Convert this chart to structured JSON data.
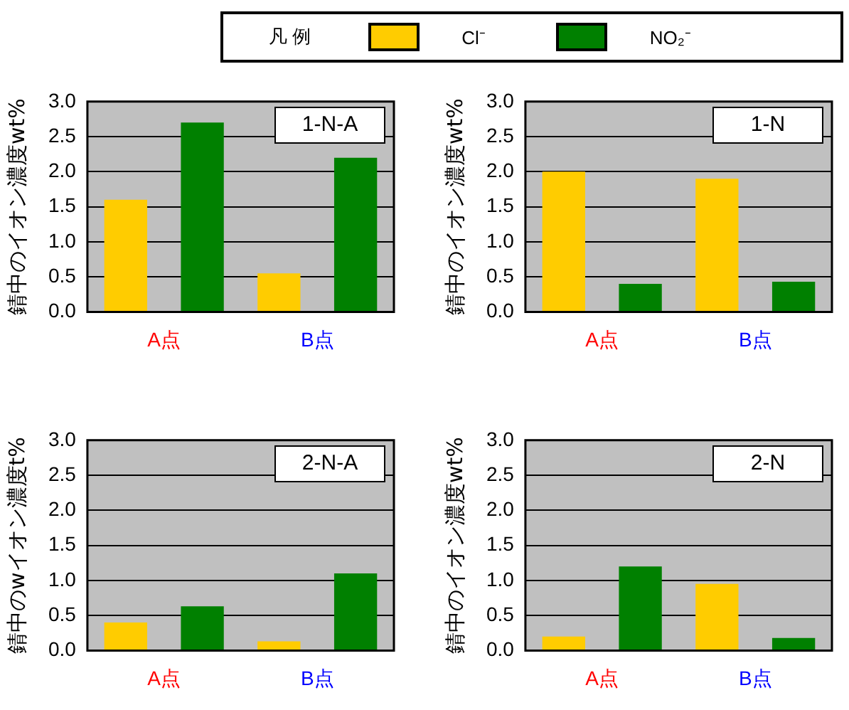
{
  "chart_data": [
    {
      "type": "bar",
      "ylabel": "錆中のイオン濃度wt%",
      "legend_title": "凡 例",
      "legend": "top",
      "categories": [
        "A点",
        "B点"
      ],
      "annotations": [
        "1-N-A"
      ],
      "ylim": [
        0,
        3
      ],
      "yticks": [
        {
          "value": 0,
          "label": "0.0"
        },
        0.5,
        {
          "value": 1,
          "label": "1.0"
        },
        1.5,
        {
          "value": 2,
          "label": "2.0"
        },
        2.5,
        {
          "value": 3,
          "label": "3.0"
        }
      ],
      "grid": "y",
      "series": [
        {
          "name": "Cl⁻",
          "color": "#ffcc00",
          "values": [
            1.6,
            0.55
          ]
        },
        {
          "name": "NO₂⁻",
          "color": "#008000",
          "values": [
            2.7,
            2.2
          ]
        }
      ]
    },
    {
      "type": "bar",
      "ylabel": "錆中のイオン濃度wt%",
      "categories": [
        "A点",
        "B点"
      ],
      "annotations": [
        "1-N"
      ],
      "ylim": [
        0,
        3
      ],
      "yticks": [
        {
          "value": 0,
          "label": "0.0"
        },
        0.5,
        {
          "value": 1,
          "label": "1.0"
        },
        1.5,
        {
          "value": 2,
          "label": "2.0"
        },
        2.5,
        {
          "value": 3,
          "label": "3.0"
        }
      ],
      "grid": "y",
      "series": [
        {
          "color": "#ffcc00",
          "values": [
            2.0,
            1.9
          ]
        },
        {
          "color": "#008000",
          "values": [
            0.4,
            0.43
          ]
        }
      ]
    },
    {
      "type": "bar",
      "ylabel": "錆中のwイオン濃度t%",
      "categories": [
        "A点",
        "B点"
      ],
      "annotations": [
        "2-N-A"
      ],
      "ylim": [
        0,
        3
      ],
      "yticks": [
        {
          "value": 0,
          "label": "0.0"
        },
        0.5,
        {
          "value": 1,
          "label": "1.0"
        },
        1.5,
        {
          "value": 2,
          "label": "2.0"
        },
        2.5,
        {
          "value": 3,
          "label": "3.0"
        }
      ],
      "grid": "y",
      "series": [
        {
          "color": "#ffcc00",
          "values": [
            0.4,
            0.13
          ]
        },
        {
          "color": "#008000",
          "values": [
            0.63,
            1.1
          ]
        }
      ]
    },
    {
      "type": "bar",
      "ylabel": "錆中のイオン濃度wt%",
      "categories": [
        "A点",
        "B点"
      ],
      "annotations": [
        "2-N"
      ],
      "ylim": [
        0,
        3
      ],
      "yticks": [
        {
          "value": 0,
          "label": "0.0"
        },
        0.5,
        {
          "value": 1,
          "label": "1.0"
        },
        1.5,
        {
          "value": 2,
          "label": "2.0"
        },
        2.5,
        {
          "value": 3,
          "label": "3.0"
        }
      ],
      "grid": "y",
      "series": [
        {
          "color": "#ffcc00",
          "values": [
            0.2,
            0.95
          ]
        },
        {
          "color": "#008000",
          "values": [
            1.2,
            0.18
          ]
        }
      ]
    }
  ]
}
